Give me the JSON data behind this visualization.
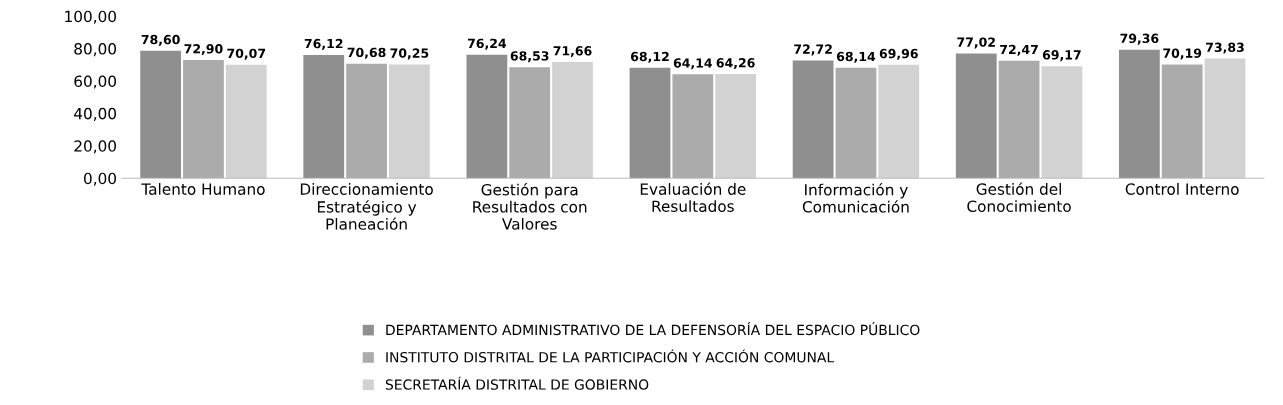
{
  "chart_data": {
    "type": "bar",
    "categories": [
      "Talento Humano",
      "Direccionamiento\nEstratégico y\nPlaneación",
      "Gestión para\nResultados con\nValores",
      "Evaluación de\nResultados",
      "Información y\nComunicación",
      "Gestión del\nConocimiento",
      "Control Interno"
    ],
    "series": [
      {
        "name": "DEPARTAMENTO ADMINISTRATIVO DE LA DEFENSORÍA DEL ESPACIO PÚBLICO",
        "color": "#8f8f8f",
        "values": [
          78.6,
          76.12,
          76.24,
          68.12,
          72.72,
          77.02,
          79.36
        ],
        "value_labels": [
          "78,60",
          "76,12",
          "76,24",
          "68,12",
          "72,72",
          "77,02",
          "79,36"
        ]
      },
      {
        "name": "INSTITUTO DISTRITAL DE LA PARTICIPACIÓN Y ACCIÓN COMUNAL",
        "color": "#ababab",
        "values": [
          72.9,
          70.68,
          68.53,
          64.14,
          68.14,
          72.47,
          70.19
        ],
        "value_labels": [
          "72,90",
          "70,68",
          "68,53",
          "64,14",
          "68,14",
          "72,47",
          "70,19"
        ]
      },
      {
        "name": "SECRETARÍA DISTRITAL DE GOBIERNO",
        "color": "#d2d2d2",
        "values": [
          70.07,
          70.25,
          71.66,
          64.26,
          69.96,
          69.17,
          73.83
        ],
        "value_labels": [
          "70,07",
          "70,25",
          "71,66",
          "64,26",
          "69,96",
          "69,17",
          "73,83"
        ]
      }
    ],
    "ylim": [
      0,
      100
    ],
    "yticks": [
      {
        "value": 0,
        "label": "0,00"
      },
      {
        "value": 20,
        "label": "20,00"
      },
      {
        "value": 40,
        "label": "40,00"
      },
      {
        "value": 60,
        "label": "60,00"
      },
      {
        "value": 80,
        "label": "80,00"
      },
      {
        "value": 100,
        "label": "100,00"
      }
    ],
    "legend": "bottom"
  }
}
